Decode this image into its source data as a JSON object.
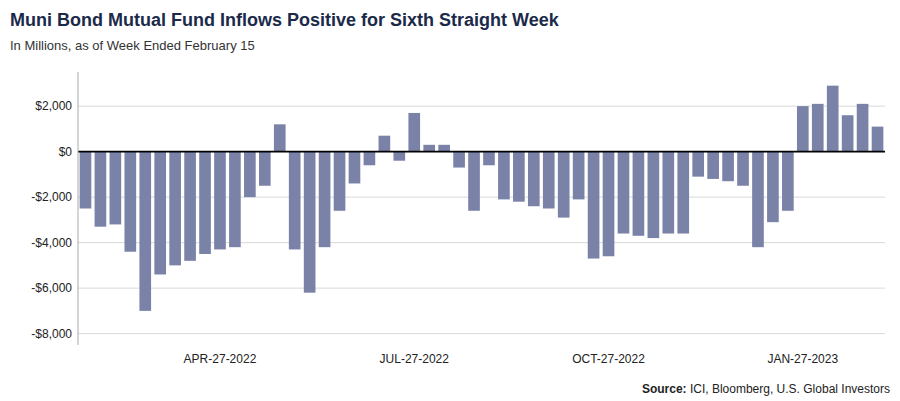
{
  "chart_data": {
    "type": "bar",
    "title": "Muni Bond Mutual Fund Inflows Positive for Sixth Straight Week",
    "subtitle": "In Millions, as of Week Ended February 15",
    "source_label": "Source:",
    "source": " ICI, Bloomberg, U.S. Global Investors",
    "color": "#7B82A8",
    "categories": [
      null,
      null,
      null,
      null,
      null,
      null,
      null,
      null,
      null,
      "APR-27-2022",
      null,
      null,
      null,
      null,
      null,
      null,
      null,
      null,
      null,
      null,
      null,
      null,
      "JUL-27-2022",
      null,
      null,
      null,
      null,
      null,
      null,
      null,
      null,
      null,
      null,
      null,
      null,
      "OCT-27-2022",
      null,
      null,
      null,
      null,
      null,
      null,
      null,
      null,
      null,
      null,
      null,
      null,
      "JAN-27-2023",
      null,
      null,
      null,
      null,
      null
    ],
    "values": [
      -2500,
      -3300,
      -3200,
      -4400,
      -7000,
      -5400,
      -5000,
      -4800,
      -4500,
      -4300,
      -4200,
      -2000,
      -1500,
      1200,
      -4300,
      -6200,
      -4200,
      -2600,
      -1400,
      -600,
      700,
      -400,
      1700,
      300,
      300,
      -700,
      -2600,
      -600,
      -2100,
      -2200,
      -2400,
      -2500,
      -2900,
      -2100,
      -4700,
      -4600,
      -3600,
      -3700,
      -3800,
      -3600,
      -3600,
      -1100,
      -1200,
      -1300,
      -1500,
      -4200,
      -3100,
      -2600,
      2000,
      2100,
      2900,
      1600,
      2100,
      1100
    ],
    "ylim": [
      -8500,
      3500
    ],
    "yticks": [
      {
        "value": -8000,
        "label": "-$8,000"
      },
      {
        "value": -6000,
        "label": "-$6,000"
      },
      {
        "value": -4000,
        "label": "-$4,000"
      },
      {
        "value": -2000,
        "label": "-$2,000"
      },
      {
        "value": 0,
        "label": "$0"
      },
      {
        "value": 2000,
        "label": "$2,000"
      }
    ],
    "grid": true
  }
}
